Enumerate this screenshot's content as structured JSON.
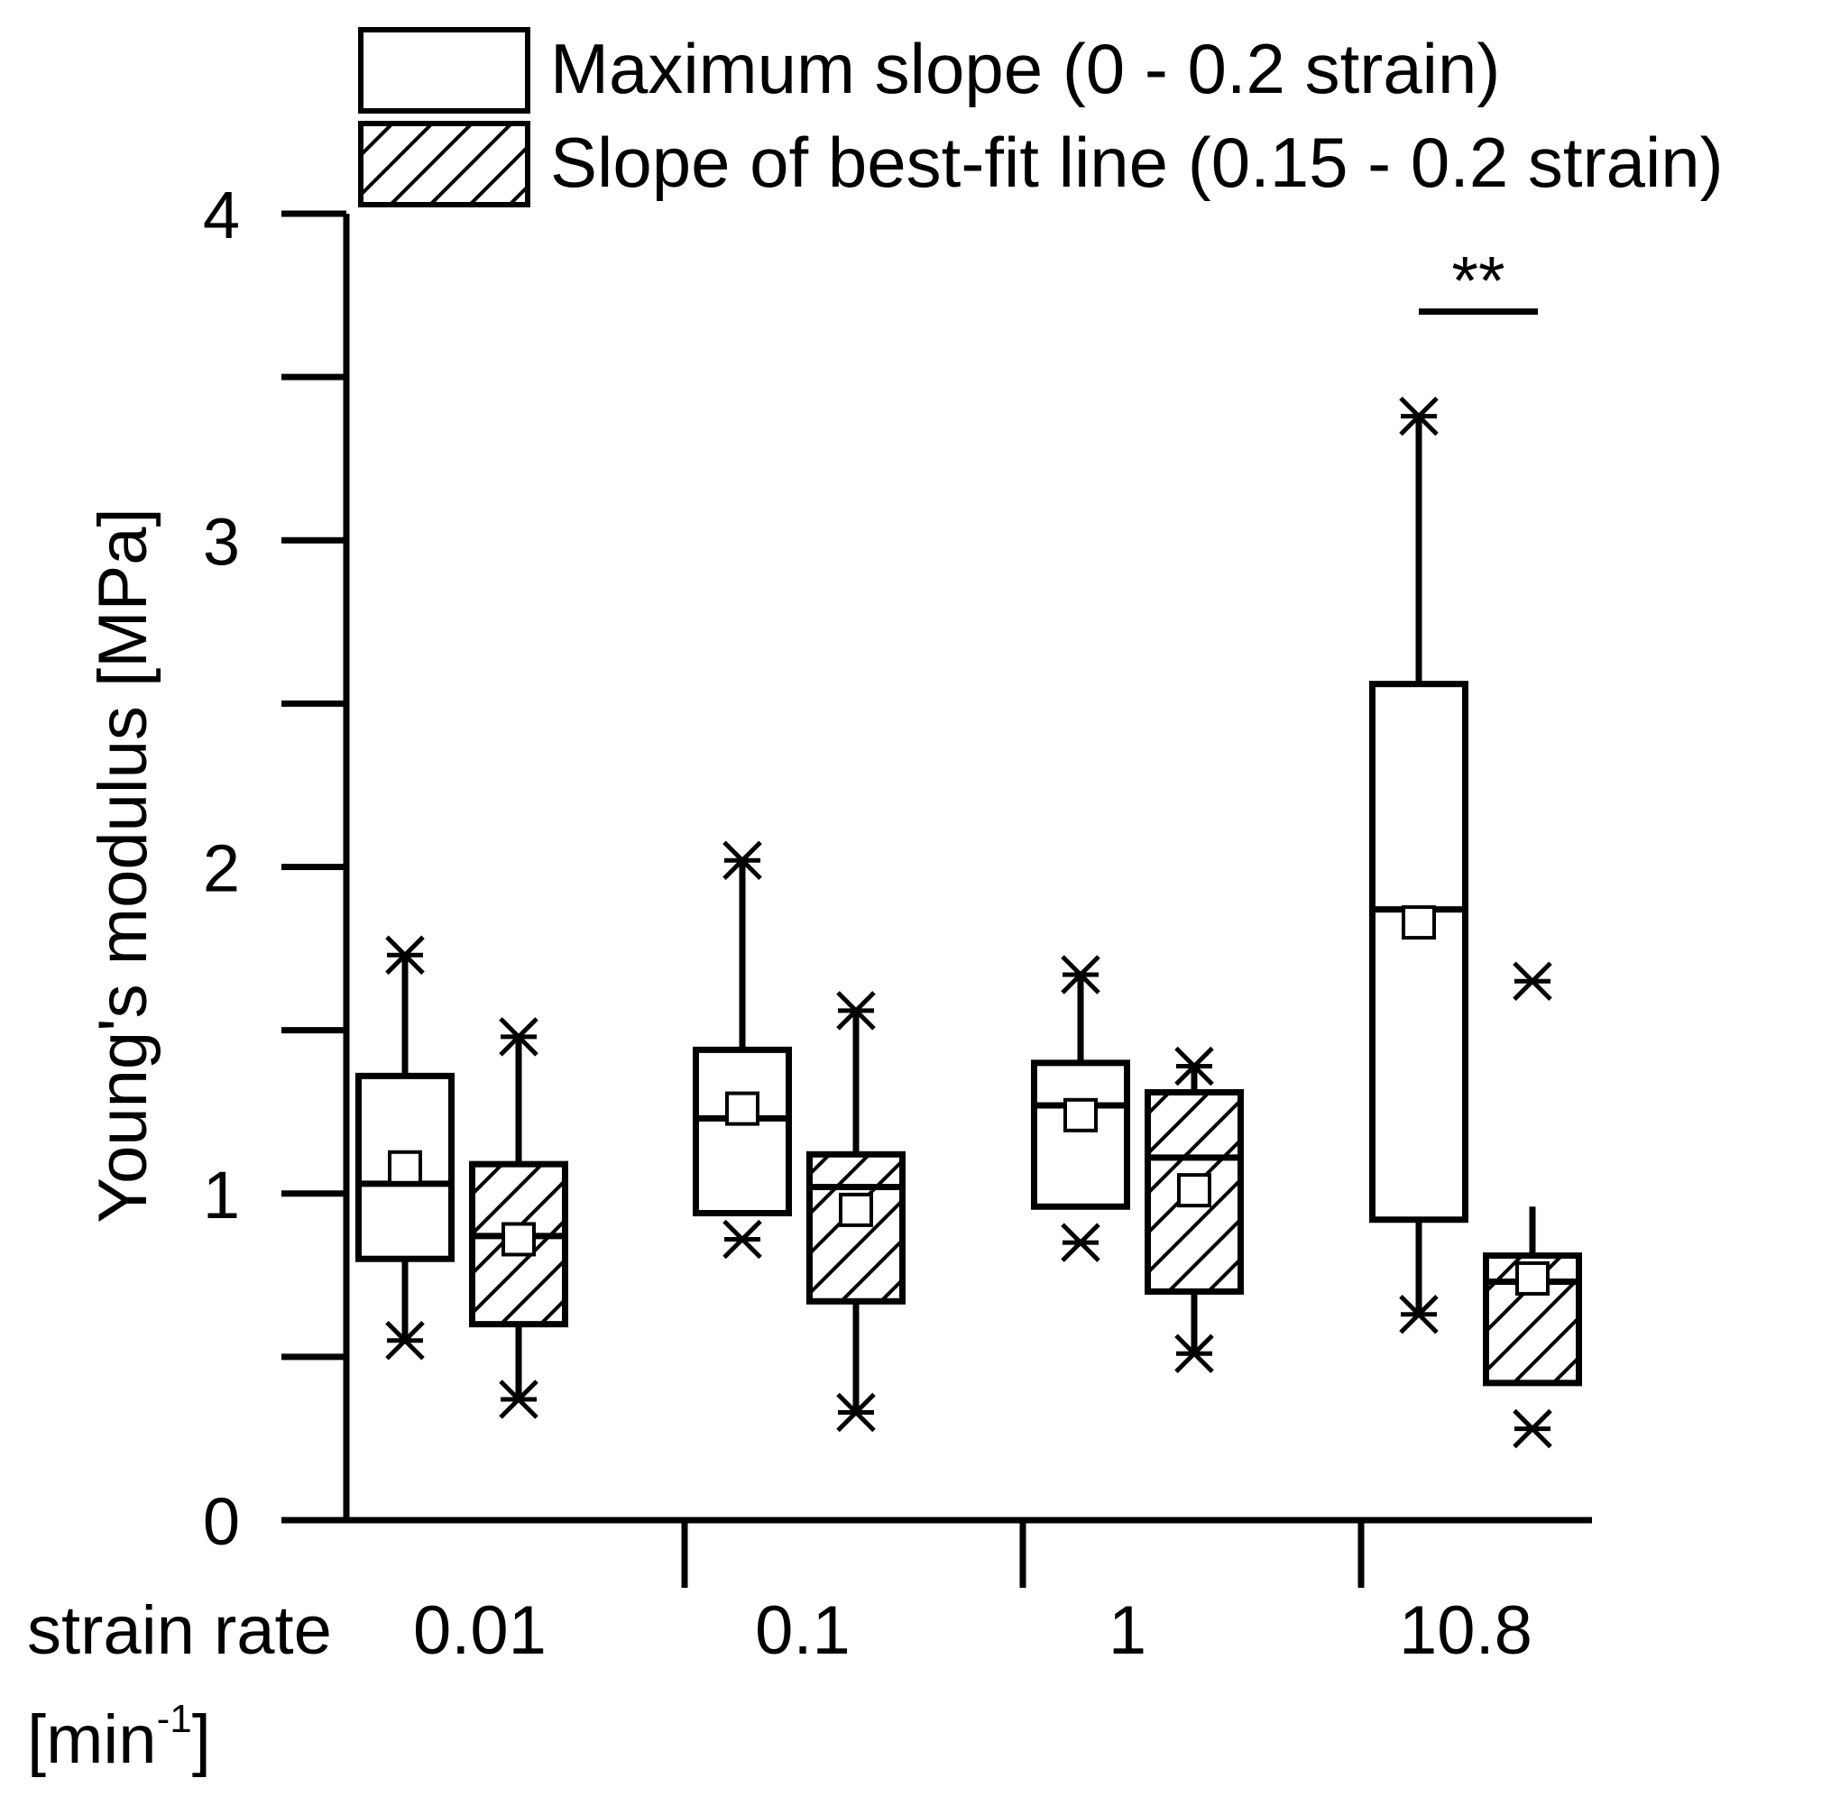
{
  "chart_data": {
    "type": "box",
    "ylabel": "Young's modulus [MPa]",
    "xlabel_main": "strain rate",
    "xlabel_unit_open": "[min",
    "xlabel_unit_exp": "-1",
    "xlabel_unit_close": "]",
    "ylim": [
      0,
      4
    ],
    "yticks": [
      "0",
      "1",
      "2",
      "3",
      "4"
    ],
    "categories": [
      "0.01",
      "0.1",
      "1",
      "10.8"
    ],
    "legend": [
      {
        "name": "Maximum slope (0 - 0.2 strain)",
        "pattern": "none"
      },
      {
        "name": "Slope of best-fit line (0.15 - 0.2 strain)",
        "pattern": "hatch"
      }
    ],
    "series": [
      {
        "name": "Maximum slope (0 - 0.2 strain)",
        "pattern": "none",
        "boxes": [
          {
            "whisker_min": 0.55,
            "q1": 0.8,
            "median": 1.03,
            "q3": 1.36,
            "whisker_max": 1.72,
            "mean": 1.08,
            "min_marker": 0.55,
            "max_marker": 1.73
          },
          {
            "whisker_min": 0.94,
            "q1": 0.94,
            "median": 1.23,
            "q3": 1.44,
            "whisker_max": 2.02,
            "mean": 1.26,
            "min_marker": 0.86,
            "max_marker": 2.02
          },
          {
            "whisker_min": 0.96,
            "q1": 0.96,
            "median": 1.27,
            "q3": 1.4,
            "whisker_max": 1.67,
            "mean": 1.24,
            "min_marker": 0.85,
            "max_marker": 1.67
          },
          {
            "whisker_min": 0.63,
            "q1": 0.92,
            "median": 1.87,
            "q3": 2.56,
            "whisker_max": 3.38,
            "mean": 1.83,
            "min_marker": 0.63,
            "max_marker": 3.38
          }
        ]
      },
      {
        "name": "Slope of best-fit line (0.15 - 0.2 strain)",
        "pattern": "hatch",
        "boxes": [
          {
            "whisker_min": 0.37,
            "q1": 0.6,
            "median": 0.87,
            "q3": 1.09,
            "whisker_max": 1.47,
            "mean": 0.86,
            "min_marker": 0.37,
            "max_marker": 1.48
          },
          {
            "whisker_min": 0.33,
            "q1": 0.67,
            "median": 1.02,
            "q3": 1.12,
            "whisker_max": 1.56,
            "mean": 0.95,
            "min_marker": 0.33,
            "max_marker": 1.56
          },
          {
            "whisker_min": 0.51,
            "q1": 0.7,
            "median": 1.11,
            "q3": 1.31,
            "whisker_max": 1.4,
            "mean": 1.01,
            "min_marker": 0.51,
            "max_marker": 1.39
          },
          {
            "whisker_min": 0.42,
            "q1": 0.42,
            "median": 0.73,
            "q3": 0.81,
            "whisker_max": 0.96,
            "mean": 0.74,
            "min_marker": 0.28,
            "max_marker": 1.65
          }
        ]
      }
    ],
    "annotations": [
      {
        "text": "**",
        "category_index": 3,
        "value": 3.7
      }
    ]
  }
}
